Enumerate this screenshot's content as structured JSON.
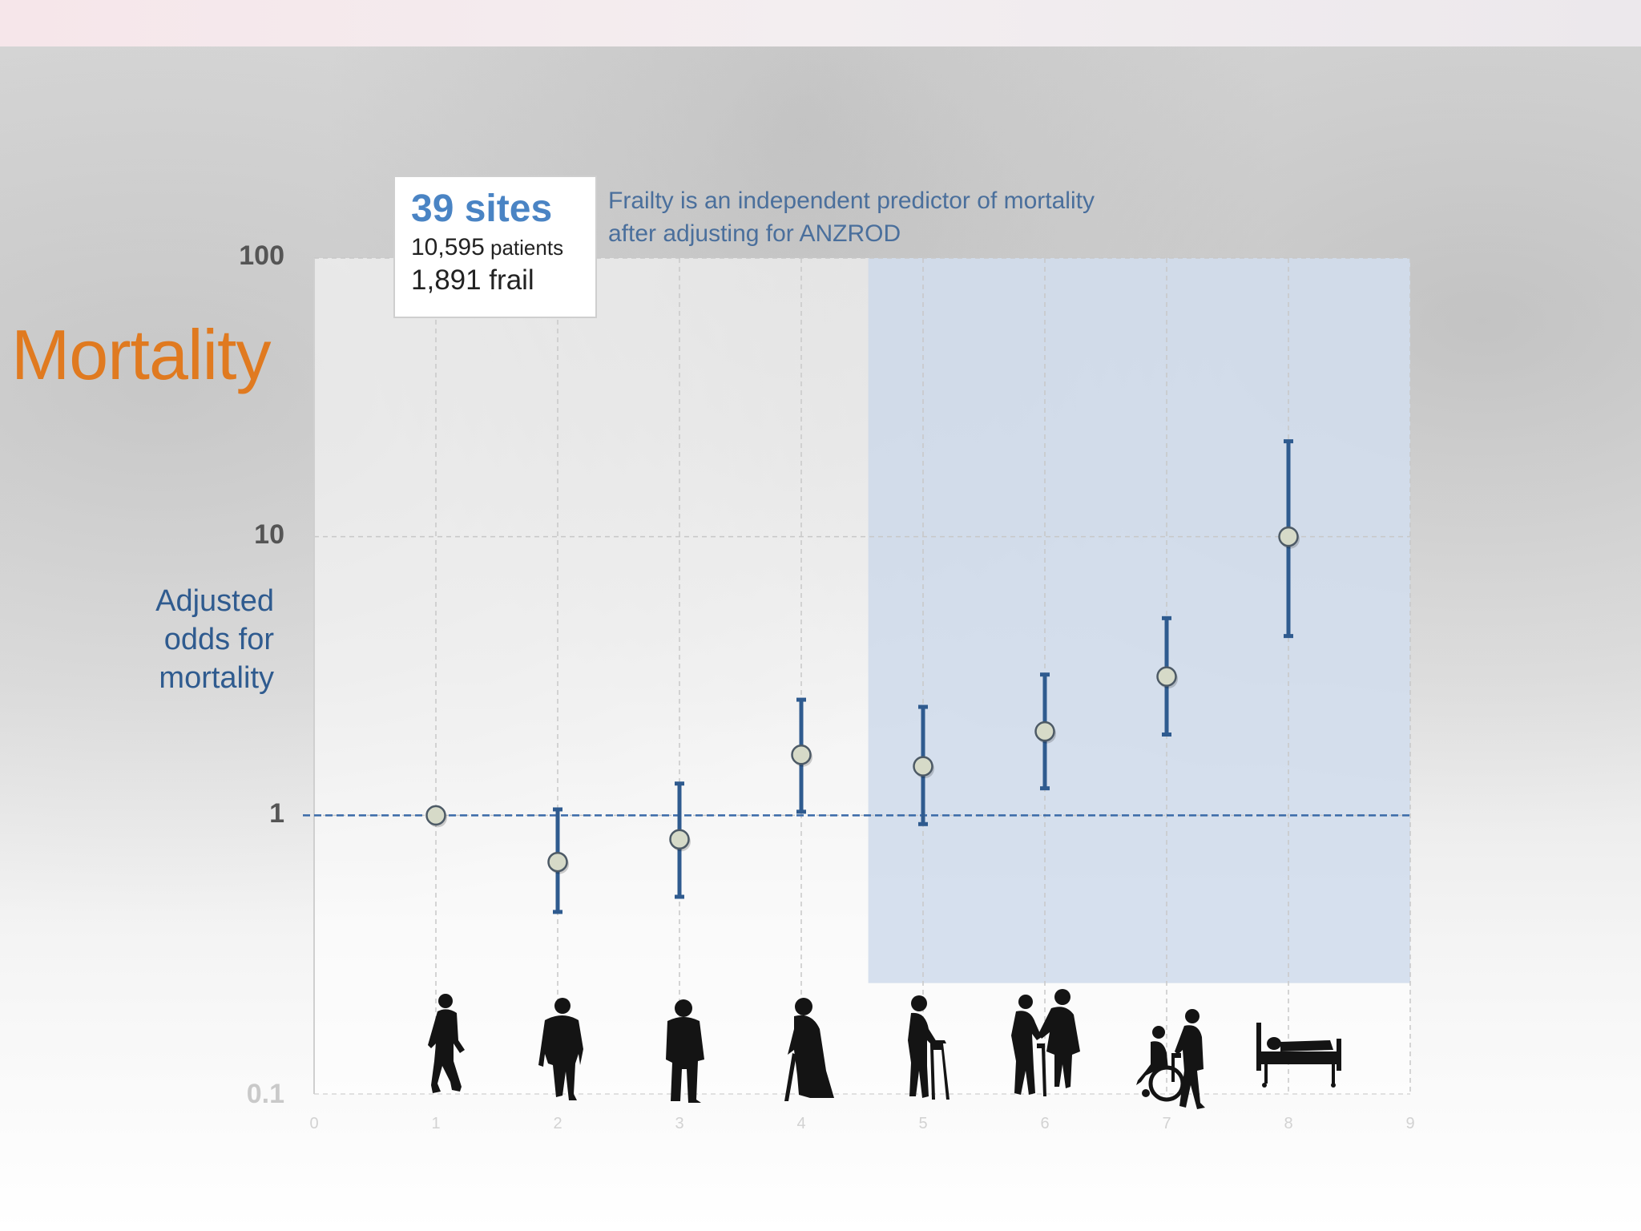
{
  "slide": {
    "title": "Mortality",
    "info_box": {
      "sites": "39 sites",
      "patients_number": "10,595",
      "patients_word": "patients",
      "frail": "1,891 frail"
    },
    "annotation_line1": "Frailty is an independent predictor of mortality",
    "annotation_line2": "after adjusting for ANZROD"
  },
  "chart_data": {
    "type": "scatter",
    "ylabel_lines": [
      "Adjusted",
      "odds for",
      "mortality"
    ],
    "y_scale": "log",
    "ylim": [
      0.1,
      100
    ],
    "y_ticks": [
      "100",
      "10",
      "1",
      "0.1"
    ],
    "y_tick_values": [
      100,
      10,
      1,
      0.1
    ],
    "xlim": [
      0,
      9
    ],
    "x_ticks": [
      "0",
      "1",
      "2",
      "3",
      "4",
      "5",
      "6",
      "7",
      "8",
      "9"
    ],
    "reference_line_y": 1,
    "shaded_region_x": [
      4.55,
      9
    ],
    "shaded_region_y_min": 0.25,
    "grid": true,
    "series": [
      {
        "points": [
          {
            "x": 1,
            "y": 1.0,
            "low": null,
            "high": null
          },
          {
            "x": 2,
            "y": 0.68,
            "low": 0.45,
            "high": 1.05
          },
          {
            "x": 3,
            "y": 0.82,
            "low": 0.51,
            "high": 1.3
          },
          {
            "x": 4,
            "y": 1.65,
            "low": 1.03,
            "high": 2.6
          },
          {
            "x": 5,
            "y": 1.5,
            "low": 0.93,
            "high": 2.45
          },
          {
            "x": 6,
            "y": 2.0,
            "low": 1.25,
            "high": 3.2
          },
          {
            "x": 7,
            "y": 3.15,
            "low": 1.95,
            "high": 5.1
          },
          {
            "x": 8,
            "y": 10.0,
            "low": 4.4,
            "high": 22.0
          }
        ]
      }
    ],
    "category_icons": [
      "very-fit-person-icon",
      "well-person-icon",
      "managing-well-person-icon",
      "vulnerable-person-with-cane-icon",
      "person-with-walker-icon",
      "assisted-person-icon",
      "person-in-wheelchair-icon",
      "bedridden-person-icon"
    ],
    "colors": {
      "marker_fill": "#d6dac8",
      "marker_stroke": "#4d5a66",
      "errorbar": "#2f5b8f",
      "reference_line": "#3a6aa8",
      "shade": "#c9d7ea",
      "grid": "#c8c8c8"
    }
  }
}
